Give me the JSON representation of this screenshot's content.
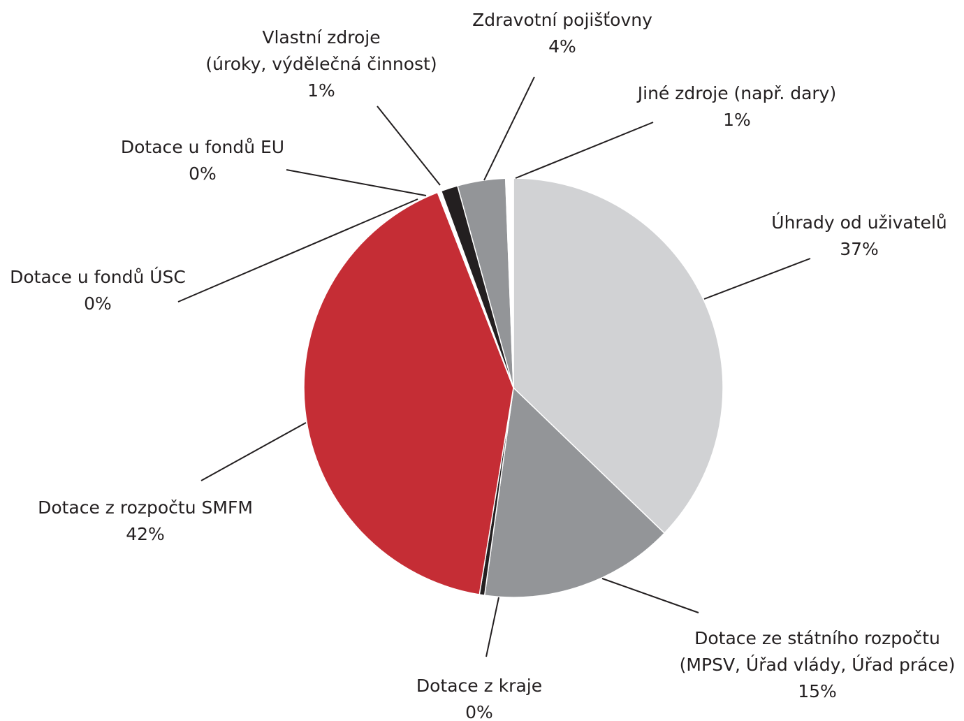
{
  "chart_data": {
    "type": "pie",
    "categories": [
      [
        "Úhrady od uživatelů"
      ],
      [
        "Dotace ze státního rozpočtu",
        "(MPSV, Úřad vlády, Úřad práce)"
      ],
      [
        "Dotace z kraje"
      ],
      [
        "Dotace z rozpočtu SMFM"
      ],
      [
        "Dotace u fondů ÚSC"
      ],
      [
        "Dotace u fondů EU"
      ],
      [
        "Vlastní zdroje",
        "(úroky, výdělečná činnost)"
      ],
      [
        "Zdravotní pojišťovny"
      ],
      [
        "Jiné zdroje (např. dary)"
      ]
    ],
    "values": [
      37.2,
      15.0,
      0.4,
      41.5,
      0.1,
      0.2,
      1.3,
      3.7,
      0.6
    ],
    "value_labels": [
      "37%",
      "15%",
      "0%",
      "42%",
      "0%",
      "0%",
      "1%",
      "4%",
      "1%"
    ],
    "colors": [
      "#d1d2d4",
      "#939598",
      "#231f20",
      "#c52d35",
      "#ffffff",
      "#ffffff",
      "#231f20",
      "#939598",
      "#ffffff"
    ]
  }
}
